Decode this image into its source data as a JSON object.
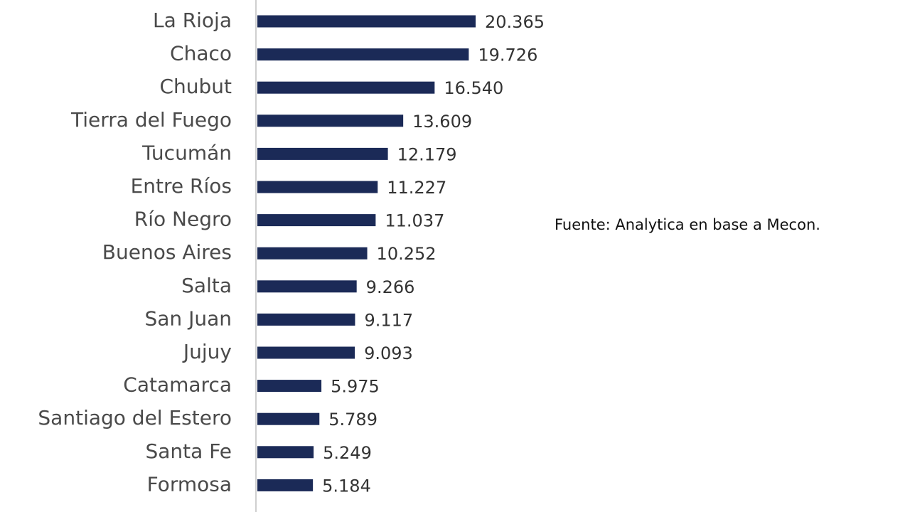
{
  "chart_data": {
    "type": "bar",
    "orientation": "horizontal",
    "source": "Fuente: Analytica en base a Mecon.",
    "categories": [
      "La Rioja",
      "Chaco",
      "Chubut",
      "Tierra del Fuego",
      "Tucumán",
      "Entre Ríos",
      "Río Negro",
      "Buenos Aires",
      "Salta",
      "San Juan",
      "Jujuy",
      "Catamarca",
      "Santiago del Estero",
      "Santa Fe",
      "Formosa"
    ],
    "values": [
      20365,
      19726,
      16540,
      13609,
      12179,
      11227,
      11037,
      10252,
      9266,
      9117,
      9093,
      5975,
      5789,
      5249,
      5184
    ],
    "value_labels": [
      "20.365",
      "19.726",
      "16.540",
      "13.609",
      "12.179",
      "11.227",
      "11.037",
      "10.252",
      "9.266",
      "9.117",
      "9.093",
      "5.975",
      "5.789",
      "5.249",
      "5.184"
    ],
    "color": "#1b2a57"
  }
}
